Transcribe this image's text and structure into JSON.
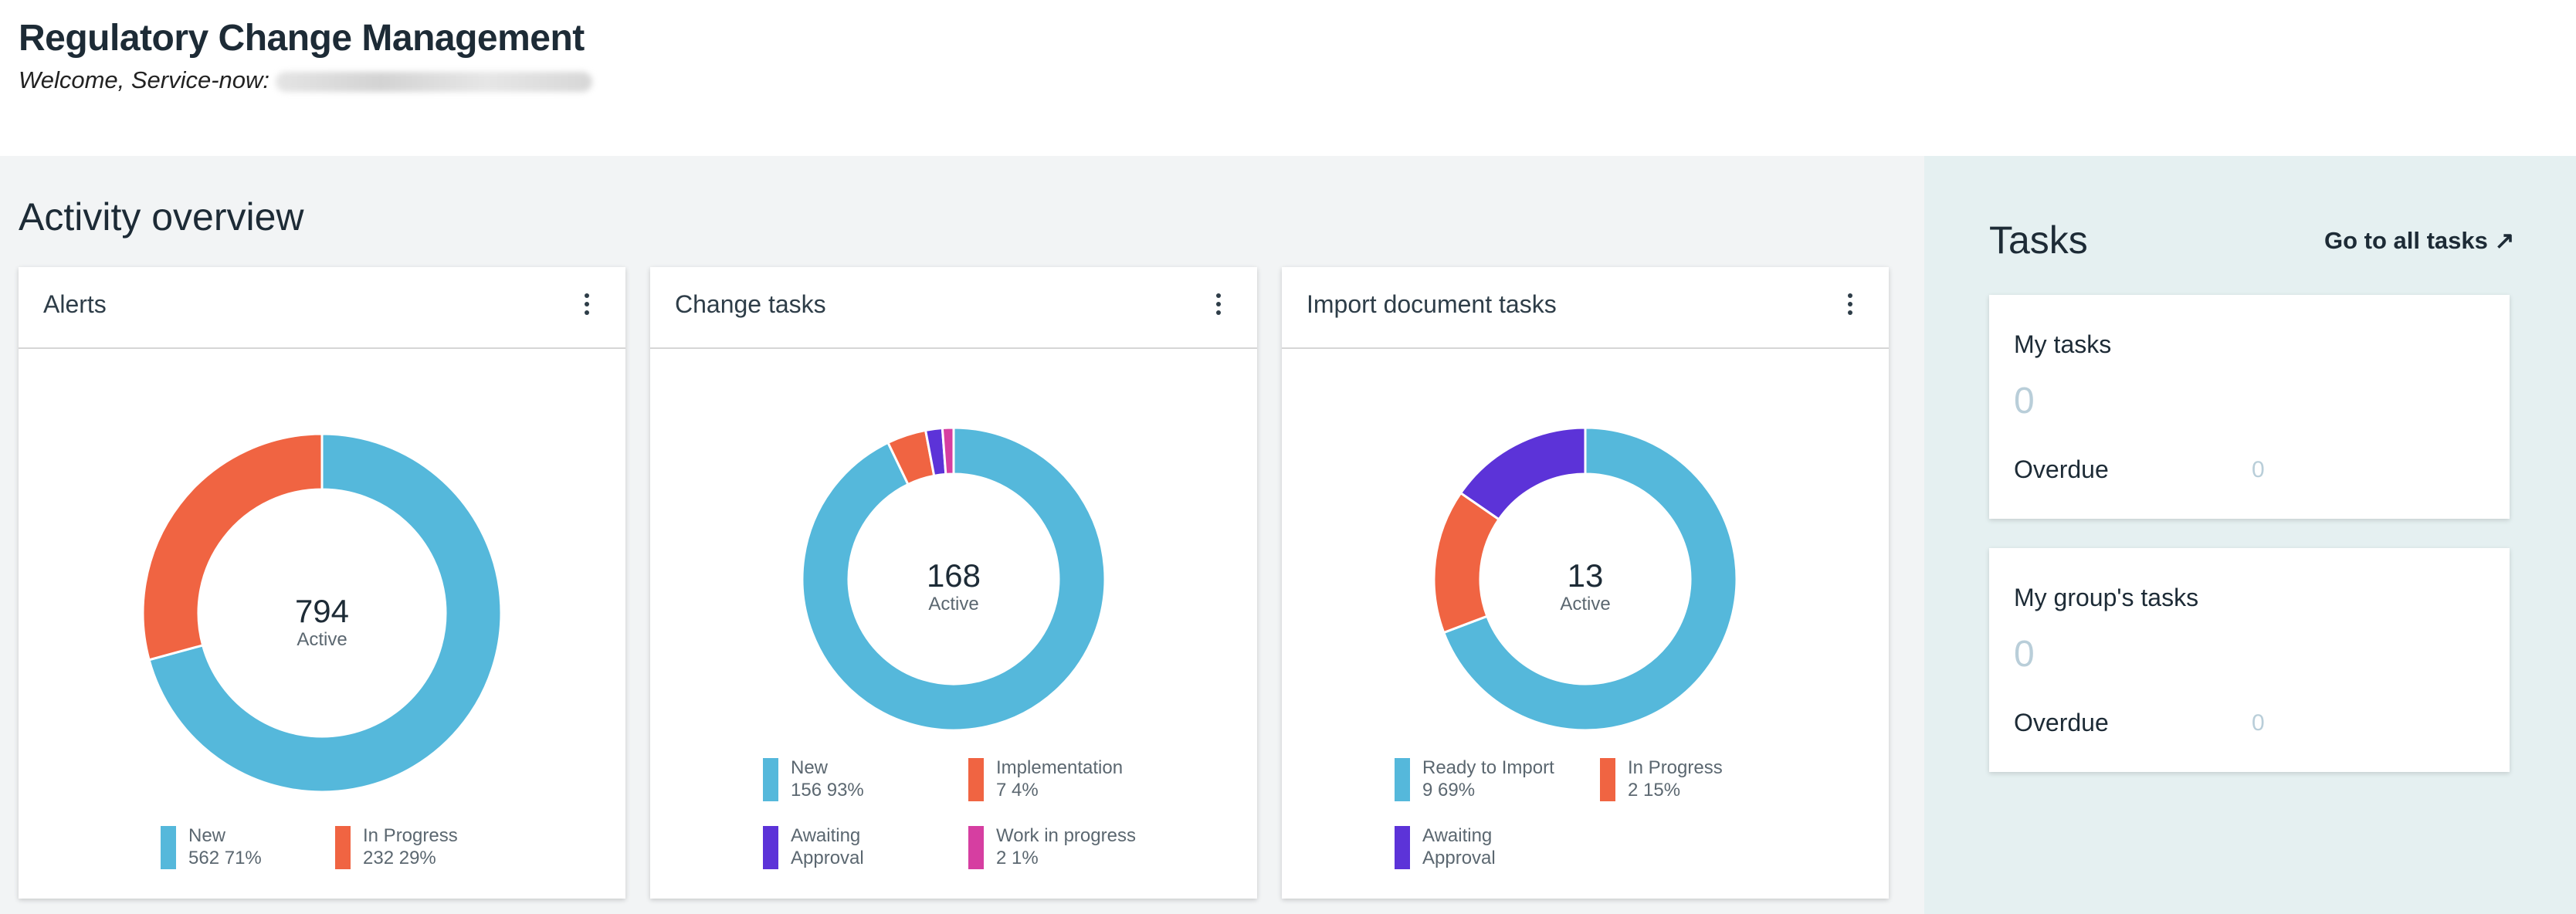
{
  "header": {
    "title": "Regulatory Change Management",
    "welcome": "Welcome, Service-now:"
  },
  "overview": {
    "title": "Activity overview",
    "cards": [
      {
        "title": "Alerts",
        "menu_icon": "kebab-vertical-icon",
        "total": "794",
        "total_label": "Active",
        "slices": [
          {
            "name": "New",
            "count": "562",
            "percent": "71%",
            "value": 562,
            "color": "#55b8db"
          },
          {
            "name": "In Progress",
            "count": "232",
            "percent": "29%",
            "value": 232,
            "color": "#f06442"
          }
        ]
      },
      {
        "title": "Change tasks",
        "menu_icon": "kebab-vertical-icon",
        "total": "168",
        "total_label": "Active",
        "slices": [
          {
            "name": "New",
            "count": "156",
            "percent": "93%",
            "value": 156,
            "color": "#55b8db"
          },
          {
            "name": "Implementation",
            "count": "7",
            "percent": "4%",
            "value": 7,
            "color": "#f06442"
          },
          {
            "name": "Awaiting Approval",
            "count": "3",
            "percent": "",
            "value": 3,
            "color": "#5c33d8"
          },
          {
            "name": "Work in progress",
            "count": "2",
            "percent": "1%",
            "value": 2,
            "color": "#d63ea1"
          }
        ]
      },
      {
        "title": "Import document tasks",
        "menu_icon": "kebab-vertical-icon",
        "total": "13",
        "total_label": "Active",
        "slices": [
          {
            "name": "Ready to Import",
            "count": "9",
            "percent": "69%",
            "value": 9,
            "color": "#55b8db"
          },
          {
            "name": "In Progress",
            "count": "2",
            "percent": "15%",
            "value": 2,
            "color": "#f06442"
          },
          {
            "name": "Awaiting Approval",
            "count": "2",
            "percent": "",
            "value": 2,
            "color": "#5c33d8"
          }
        ]
      }
    ]
  },
  "tasks": {
    "title": "Tasks",
    "link": "Go to all tasks ↗",
    "cards": [
      {
        "title": "My tasks",
        "count": "0",
        "overdue_label": "Overdue",
        "overdue_count": "0"
      },
      {
        "title": "My group's tasks",
        "count": "0",
        "overdue_label": "Overdue",
        "overdue_count": "0"
      }
    ]
  },
  "chart_data": [
    {
      "type": "pie",
      "title": "Alerts",
      "categories": [
        "New",
        "In Progress"
      ],
      "values": [
        562,
        232
      ],
      "center_value": 794,
      "center_label": "Active",
      "legend_position": "bottom"
    },
    {
      "type": "pie",
      "title": "Change tasks",
      "categories": [
        "New",
        "Implementation",
        "Awaiting Approval",
        "Work in progress"
      ],
      "values": [
        156,
        7,
        3,
        2
      ],
      "center_value": 168,
      "center_label": "Active",
      "legend_position": "bottom"
    },
    {
      "type": "pie",
      "title": "Import document tasks",
      "categories": [
        "Ready to Import",
        "In Progress",
        "Awaiting Approval"
      ],
      "values": [
        9,
        2,
        2
      ],
      "center_value": 13,
      "center_label": "Active",
      "legend_position": "bottom"
    }
  ]
}
